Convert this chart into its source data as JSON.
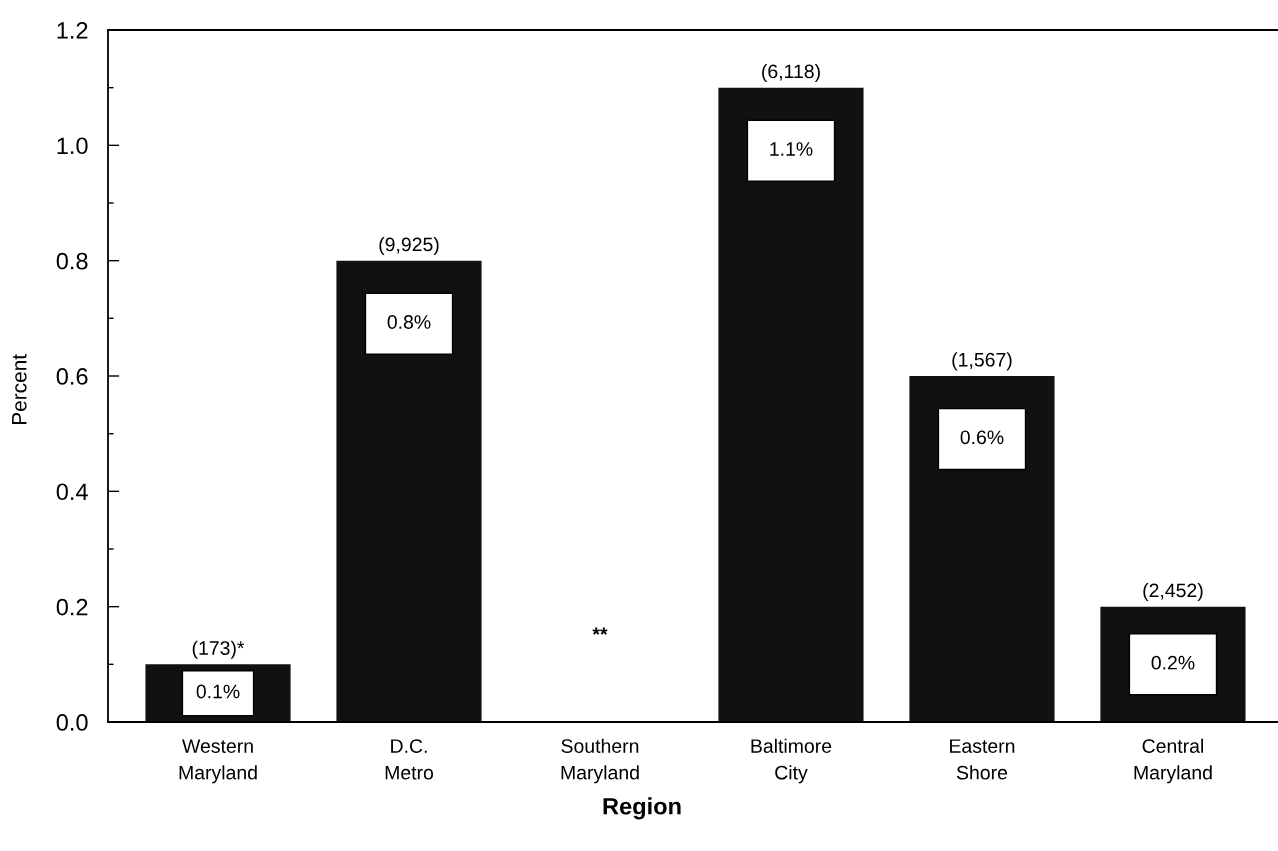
{
  "chart_data": {
    "type": "bar",
    "xlabel": "Region",
    "ylabel": "Percent",
    "categories": [
      "Western\nMaryland",
      "D.C.\nMetro",
      "Southern\nMaryland",
      "Baltimore\nCity",
      "Eastern\nShore",
      "Central\nMaryland"
    ],
    "values": [
      0.1,
      0.8,
      null,
      1.1,
      0.6,
      0.2
    ],
    "color": "#111111",
    "value_labels": [
      "0.1%",
      "0.8%",
      null,
      "1.1%",
      "0.6%",
      "0.2%"
    ],
    "ylim": [
      0,
      1.2
    ],
    "yticks": [
      {
        "value": 0,
        "label": "0.0"
      },
      {
        "value": 0.1,
        "label": null
      },
      {
        "value": 0.2,
        "label": "0.2"
      },
      {
        "value": 0.3,
        "label": null
      },
      {
        "value": 0.4,
        "label": "0.4"
      },
      {
        "value": 0.5,
        "label": null
      },
      {
        "value": 0.6,
        "label": "0.6"
      },
      {
        "value": 0.7,
        "label": null
      },
      {
        "value": 0.8,
        "label": "0.8"
      },
      {
        "value": 0.9,
        "label": null
      },
      {
        "value": 1.0,
        "label": "1.0"
      },
      {
        "value": 1.1,
        "label": null
      },
      {
        "value": 1.2,
        "label": "1.2"
      }
    ],
    "annotations": [
      {
        "text": "(173)*",
        "x": "Western\nMaryland",
        "y": 0.1
      },
      {
        "text": "(9,925)",
        "x": "D.C.\nMetro",
        "y": 0.8
      },
      "**",
      {
        "text": "(6,118)",
        "x": "Baltimore\nCity",
        "y": 1.1
      },
      {
        "text": "(1,567)",
        "x": "Eastern\nShore",
        "y": 0.6
      },
      {
        "text": "(2,452)",
        "x": "Central\nMaryland",
        "y": 0.2
      }
    ]
  }
}
